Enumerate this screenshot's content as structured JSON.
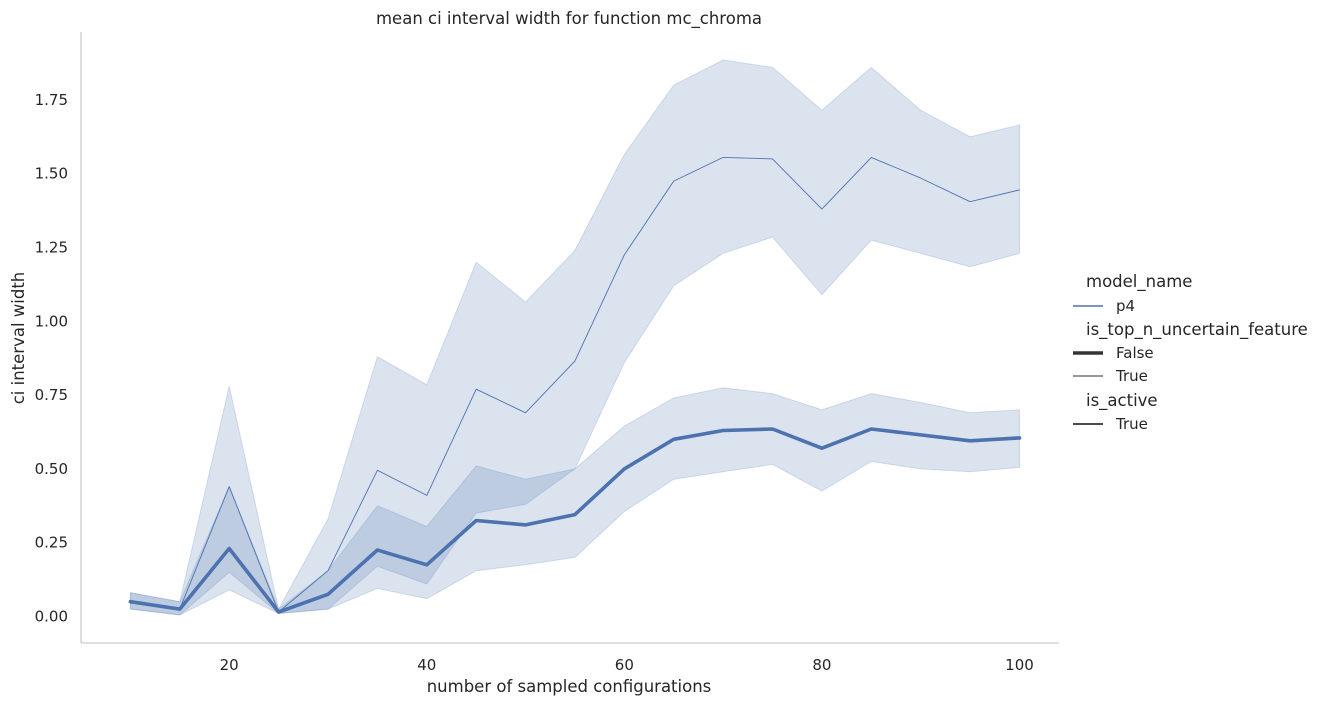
{
  "chart_data": {
    "type": "line",
    "title": "mean ci interval width for function mc_chroma",
    "xlabel": "number of sampled configurations",
    "ylabel": "ci interval width",
    "xlim": [
      5,
      104
    ],
    "ylim": [
      -0.09,
      1.98
    ],
    "xticks": [
      20,
      40,
      60,
      80,
      100
    ],
    "yticks": [
      0.0,
      0.25,
      0.5,
      0.75,
      1.0,
      1.25,
      1.5,
      1.75
    ],
    "ytick_labels": [
      "0.00",
      "0.25",
      "0.50",
      "0.75",
      "1.00",
      "1.25",
      "1.50",
      "1.75"
    ],
    "grid": false,
    "legend_position": "right",
    "color": "#4c72b0",
    "x": [
      10,
      15,
      20,
      25,
      30,
      35,
      40,
      45,
      50,
      55,
      60,
      65,
      70,
      75,
      80,
      85,
      90,
      95,
      100
    ],
    "series": [
      {
        "name": "False",
        "style": "thick",
        "values": [
          0.05,
          0.025,
          0.23,
          0.015,
          0.075,
          0.225,
          0.175,
          0.325,
          0.31,
          0.345,
          0.5,
          0.6,
          0.63,
          0.635,
          0.57,
          0.635,
          0.615,
          0.595,
          0.605
        ],
        "ci_lower": [
          0.025,
          0.005,
          0.09,
          0.01,
          0.025,
          0.095,
          0.06,
          0.155,
          0.175,
          0.2,
          0.355,
          0.465,
          0.49,
          0.515,
          0.425,
          0.525,
          0.5,
          0.49,
          0.505
        ],
        "ci_upper": [
          0.08,
          0.05,
          0.44,
          0.025,
          0.155,
          0.375,
          0.305,
          0.51,
          0.465,
          0.5,
          0.645,
          0.74,
          0.775,
          0.755,
          0.7,
          0.755,
          0.725,
          0.69,
          0.7
        ]
      },
      {
        "name": "True",
        "style": "thin",
        "values": [
          0.05,
          0.025,
          0.44,
          0.015,
          0.155,
          0.495,
          0.41,
          0.77,
          0.69,
          0.865,
          1.225,
          1.475,
          1.555,
          1.55,
          1.38,
          1.555,
          1.485,
          1.405,
          1.445
        ],
        "ci_lower": [
          0.025,
          0.005,
          0.15,
          0.01,
          0.025,
          0.17,
          0.11,
          0.35,
          0.38,
          0.5,
          0.86,
          1.12,
          1.23,
          1.285,
          1.09,
          1.275,
          1.23,
          1.185,
          1.23
        ],
        "ci_upper": [
          0.08,
          0.05,
          0.78,
          0.025,
          0.33,
          0.88,
          0.785,
          1.2,
          1.065,
          1.24,
          1.565,
          1.8,
          1.885,
          1.86,
          1.715,
          1.86,
          1.715,
          1.625,
          1.665
        ]
      }
    ],
    "legend": [
      {
        "kind": "title",
        "text": "model_name"
      },
      {
        "kind": "entry",
        "text": "p4",
        "line": "color"
      },
      {
        "kind": "title",
        "text": "is_top_n_uncertain_feature"
      },
      {
        "kind": "entry",
        "text": "False",
        "line": "thick"
      },
      {
        "kind": "entry",
        "text": "True",
        "line": "thin"
      },
      {
        "kind": "title",
        "text": "is_active"
      },
      {
        "kind": "entry",
        "text": "True",
        "line": "medium"
      }
    ]
  }
}
